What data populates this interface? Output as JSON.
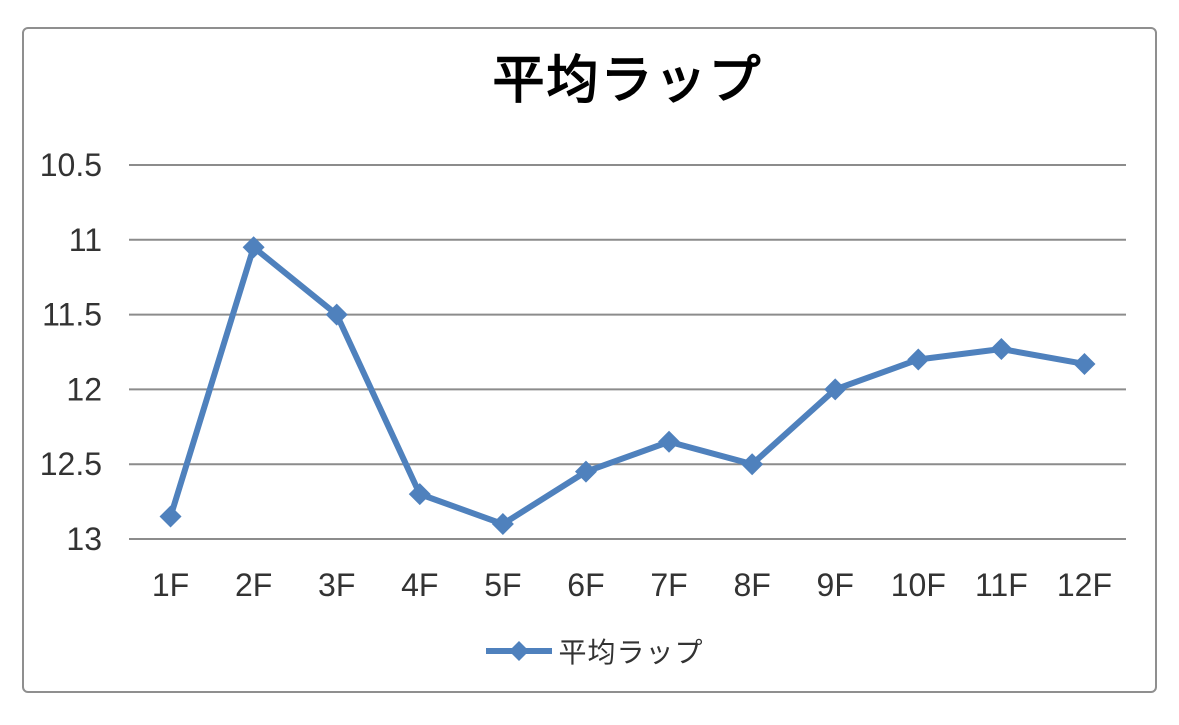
{
  "chart": {
    "title": "平均ラップ",
    "legend": {
      "label": "平均ラップ",
      "position": "bottom"
    },
    "colors": {
      "series": "#4f81bd",
      "gridline": "#8c8c8c",
      "border": "#8f8f8f",
      "tick_text": "#333333",
      "title_text": "#000000",
      "background": "#ffffff"
    }
  },
  "chart_data": {
    "type": "line",
    "title": "平均ラップ",
    "categories": [
      "1F",
      "2F",
      "3F",
      "4F",
      "5F",
      "6F",
      "7F",
      "8F",
      "9F",
      "10F",
      "11F",
      "12F"
    ],
    "series": [
      {
        "name": "平均ラップ",
        "values": [
          12.85,
          11.05,
          11.5,
          12.7,
          12.9,
          12.55,
          12.35,
          12.5,
          12.0,
          11.8,
          11.73,
          11.83
        ]
      }
    ],
    "xlabel": "",
    "ylabel": "",
    "y_axis": {
      "min": 10.5,
      "max": 13,
      "step": 0.5,
      "reversed": true,
      "tick_labels": [
        "10.5",
        "11",
        "11.5",
        "12",
        "12.5",
        "13"
      ]
    },
    "grid": true,
    "marker": "diamond",
    "legend_position": "bottom"
  }
}
